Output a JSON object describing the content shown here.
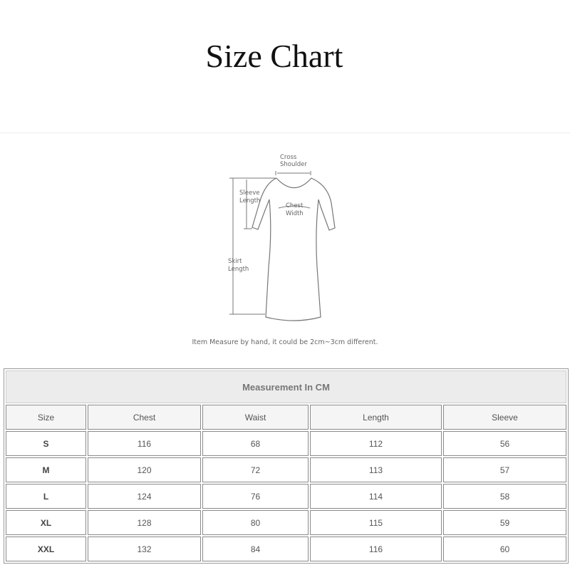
{
  "title": "Size Chart",
  "diagram": {
    "labels": {
      "cross_shoulder": [
        "Cross",
        "Shoulder"
      ],
      "sleeve_length": [
        "Sleeve",
        "Length"
      ],
      "chest_width": [
        "Chest",
        "Width"
      ],
      "skirt_length": [
        "Skirt",
        "Length"
      ]
    },
    "note": "Item Measure by hand, it could be 2cm~3cm different."
  },
  "table": {
    "caption": "Measurement In CM",
    "headers": [
      "Size",
      "Chest",
      "Waist",
      "Length",
      "Sleeve"
    ],
    "rows": [
      [
        "S",
        "116",
        "68",
        "112",
        "56"
      ],
      [
        "M",
        "120",
        "72",
        "113",
        "57"
      ],
      [
        "L",
        "124",
        "76",
        "114",
        "58"
      ],
      [
        "XL",
        "128",
        "80",
        "115",
        "59"
      ],
      [
        "XXL",
        "132",
        "84",
        "116",
        "60"
      ]
    ]
  }
}
